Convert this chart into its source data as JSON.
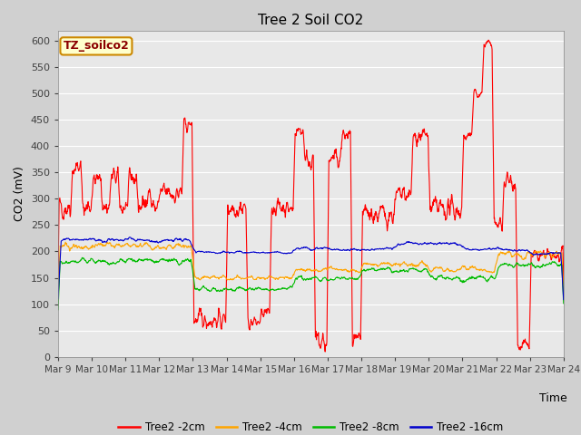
{
  "title": "Tree 2 Soil CO2",
  "xlabel": "Time",
  "ylabel": "CO2 (mV)",
  "ylim": [
    0,
    620
  ],
  "yticks": [
    0,
    50,
    100,
    150,
    200,
    250,
    300,
    350,
    400,
    450,
    500,
    550,
    600
  ],
  "x_labels": [
    "Mar 9",
    "Mar 10",
    "Mar 11",
    "Mar 12",
    "Mar 13",
    "Mar 14",
    "Mar 15",
    "Mar 16",
    "Mar 17",
    "Mar 18",
    "Mar 19",
    "Mar 20",
    "Mar 21",
    "Mar 22",
    "Mar 23",
    "Mar 24"
  ],
  "annotation_box": "TZ_soilco2",
  "colors": {
    "2cm": "#ff0000",
    "4cm": "#ffa500",
    "8cm": "#00bb00",
    "16cm": "#0000cc"
  },
  "legend": [
    "Tree2 -2cm",
    "Tree2 -4cm",
    "Tree2 -8cm",
    "Tree2 -16cm"
  ],
  "fig_bg_color": "#d0d0d0",
  "plot_bg_color": "#e8e8e8"
}
